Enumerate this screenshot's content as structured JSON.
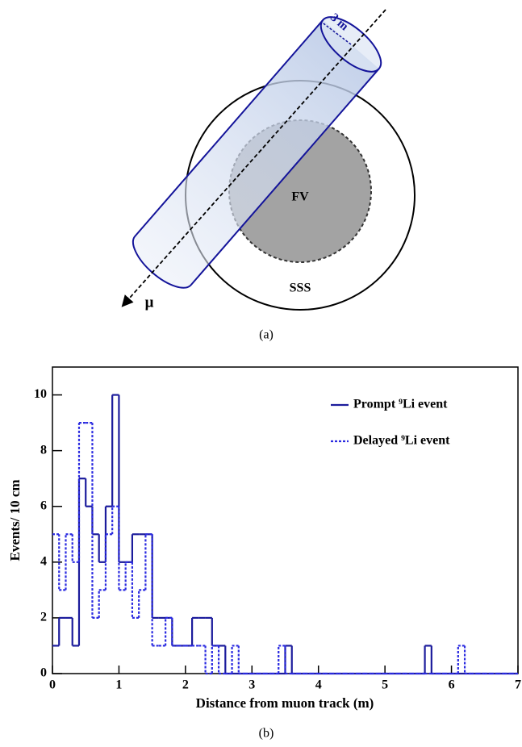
{
  "figure_a": {
    "radius_label": "3 m",
    "inner_label": "FV",
    "outer_label": "SSS",
    "muon_label": "μ",
    "caption": "(a)"
  },
  "chart_data": {
    "type": "histogram",
    "caption": "(b)",
    "xlabel": "Distance from muon track (m)",
    "ylabel": "Events/ 10 cm",
    "bins": [
      0,
      0.1,
      0.2,
      0.3,
      0.4,
      0.5,
      0.6,
      0.7,
      0.8,
      0.9,
      1.0,
      1.1,
      1.2,
      1.3,
      1.4,
      1.5,
      1.6,
      1.7,
      1.8,
      1.9,
      2.0,
      2.1,
      2.2,
      2.3,
      2.4,
      2.5,
      2.6,
      2.7,
      2.8,
      2.9,
      3.0,
      3.1,
      3.2,
      3.3,
      3.4,
      3.5,
      3.6,
      3.7,
      3.8,
      3.9,
      4.0,
      4.1,
      4.2,
      4.3,
      4.4,
      4.5,
      4.6,
      4.7,
      4.8,
      4.9,
      5.0,
      5.1,
      5.2,
      5.3,
      5.4,
      5.5,
      5.6,
      5.7,
      5.8,
      5.9,
      6.0,
      6.1,
      6.2,
      6.3,
      6.4,
      6.5,
      6.6,
      6.7,
      6.8,
      6.9,
      7.0
    ],
    "series": [
      {
        "name": "Prompt ⁹Li event",
        "color": "#1c1c9c",
        "dash": "solid",
        "values": [
          1,
          2,
          2,
          1,
          7,
          6,
          5,
          4,
          6,
          10,
          4,
          4,
          5,
          5,
          5,
          2,
          2,
          2,
          1,
          1,
          1,
          2,
          2,
          2,
          1,
          1,
          0,
          0,
          0,
          0,
          0,
          0,
          0,
          0,
          0,
          1,
          0,
          0,
          0,
          0,
          0,
          0,
          0,
          0,
          0,
          0,
          0,
          0,
          0,
          0,
          0,
          0,
          0,
          0,
          0,
          0,
          1,
          0,
          0,
          0,
          0,
          0,
          0,
          0,
          0,
          0,
          0,
          0,
          0,
          0
        ]
      },
      {
        "name": "Delayed ⁹Li event",
        "color": "#2a2ae0",
        "dash": "dotted",
        "values": [
          5,
          3,
          5,
          4,
          9,
          9,
          2,
          3,
          5,
          6,
          3,
          4,
          2,
          3,
          5,
          1,
          1,
          2,
          1,
          1,
          1,
          1,
          1,
          0,
          1,
          0,
          0,
          1,
          0,
          0,
          0,
          0,
          0,
          0,
          1,
          0,
          0,
          0,
          0,
          0,
          0,
          0,
          0,
          0,
          0,
          0,
          0,
          0,
          0,
          0,
          0,
          0,
          0,
          0,
          0,
          0,
          0,
          0,
          0,
          0,
          0,
          1,
          0,
          0,
          0,
          0,
          0,
          0,
          0,
          0
        ]
      }
    ],
    "xlim": [
      0,
      7
    ],
    "xticks": [
      0,
      1,
      2,
      3,
      4,
      5,
      6,
      7
    ],
    "ylim": [
      0,
      11
    ],
    "yticks": [
      0,
      2,
      4,
      6,
      8,
      10
    ],
    "legend": "upper right"
  }
}
